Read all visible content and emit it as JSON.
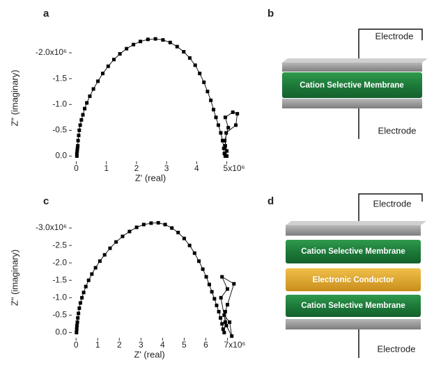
{
  "panel_labels": [
    "a",
    "b",
    "c",
    "d"
  ],
  "chart_data": [
    {
      "type": "line",
      "x_label": "Z' (real)",
      "y_label": "Z\" (imaginary)",
      "color": "#000000",
      "marker": "square",
      "xlim": [
        -0.15,
        5.45
      ],
      "ylim": [
        0.1,
        -2.35
      ],
      "xticks": [
        0,
        1,
        2,
        3,
        4,
        {
          "value": 5,
          "label": "5x10⁶"
        }
      ],
      "yticks": [
        {
          "value": 0,
          "label": "0.0"
        },
        -0.5,
        {
          "value": -1,
          "label": "-1.0"
        },
        -1.5,
        {
          "value": -2,
          "label": "-2.0x10⁶"
        }
      ],
      "x": [
        0.02,
        0.02,
        0.03,
        0.04,
        0.05,
        0.06,
        0.08,
        0.1,
        0.13,
        0.17,
        0.22,
        0.28,
        0.35,
        0.45,
        0.57,
        0.72,
        0.88,
        1.06,
        1.25,
        1.45,
        1.67,
        1.9,
        2.13,
        2.38,
        2.63,
        2.88,
        3.12,
        3.35,
        3.57,
        3.77,
        3.95,
        4.1,
        4.24,
        4.36,
        4.47,
        4.56,
        4.64,
        4.72,
        4.8,
        4.86,
        4.9,
        4.92,
        4.95,
        5.0,
        4.93,
        5.05,
        4.95,
        5.2,
        5.35,
        5.3,
        4.98,
        4.95,
        5.0
      ],
      "values": [
        0.0,
        -0.05,
        -0.1,
        -0.15,
        -0.2,
        -0.3,
        -0.4,
        -0.5,
        -0.6,
        -0.7,
        -0.8,
        -0.92,
        -1.03,
        -1.16,
        -1.3,
        -1.45,
        -1.6,
        -1.74,
        -1.87,
        -1.98,
        -2.08,
        -2.16,
        -2.22,
        -2.26,
        -2.27,
        -2.25,
        -2.2,
        -2.12,
        -2.02,
        -1.9,
        -1.76,
        -1.6,
        -1.43,
        -1.25,
        -1.08,
        -0.9,
        -0.75,
        -0.6,
        -0.45,
        -0.3,
        -0.15,
        -0.05,
        0.0,
        -0.1,
        -0.3,
        -0.55,
        -0.75,
        -0.85,
        -0.82,
        -0.6,
        -0.45,
        -0.2,
        0.0
      ]
    },
    {
      "type": "line",
      "x_label": "Z' (real)",
      "y_label": "Z\" (imaginary)",
      "color": "#000000",
      "marker": "square",
      "xlim": [
        -0.2,
        7.5
      ],
      "ylim": [
        0.15,
        -3.3
      ],
      "xticks": [
        0,
        1,
        2,
        3,
        4,
        5,
        6,
        {
          "value": 7,
          "label": "7x10⁶"
        }
      ],
      "yticks": [
        {
          "value": 0,
          "label": "0.0"
        },
        -0.5,
        {
          "value": -1,
          "label": "-1.0"
        },
        -1.5,
        {
          "value": -2,
          "label": "-2.0"
        },
        -2.5,
        {
          "value": -3,
          "label": "-3.0x10⁶"
        }
      ],
      "x": [
        0.02,
        0.03,
        0.04,
        0.06,
        0.08,
        0.11,
        0.15,
        0.2,
        0.27,
        0.35,
        0.45,
        0.58,
        0.73,
        0.9,
        1.1,
        1.32,
        1.57,
        1.85,
        2.15,
        2.47,
        2.8,
        3.13,
        3.47,
        3.8,
        4.12,
        4.43,
        4.72,
        5.0,
        5.25,
        5.48,
        5.68,
        5.86,
        6.02,
        6.16,
        6.28,
        6.4,
        6.5,
        6.6,
        6.68,
        6.75,
        6.8,
        6.85,
        6.9,
        6.7,
        7.0,
        6.75,
        7.3,
        7.0,
        6.85,
        7.1,
        7.2,
        6.95,
        6.9
      ],
      "values": [
        0.0,
        -0.1,
        -0.2,
        -0.3,
        -0.42,
        -0.55,
        -0.7,
        -0.85,
        -1.0,
        -1.15,
        -1.32,
        -1.5,
        -1.68,
        -1.86,
        -2.05,
        -2.23,
        -2.42,
        -2.6,
        -2.76,
        -2.9,
        -3.02,
        -3.1,
        -3.14,
        -3.15,
        -3.1,
        -3.0,
        -2.87,
        -2.7,
        -2.5,
        -2.28,
        -2.05,
        -1.82,
        -1.6,
        -1.38,
        -1.17,
        -0.97,
        -0.78,
        -0.6,
        -0.42,
        -0.25,
        -0.1,
        0.0,
        -0.3,
        -1.0,
        -1.25,
        -1.6,
        -1.4,
        -0.8,
        -0.5,
        -0.3,
        0.1,
        -0.2,
        -0.6
      ]
    }
  ],
  "diagrams": [
    {
      "top_label": "Electrode",
      "layers": [
        "Cation Selective Membrane"
      ],
      "bottom_label": "Electrode"
    },
    {
      "top_label": "Electrode",
      "layers": [
        "Cation Selective Membrane",
        "Electronic Conductor",
        "Cation Selective Membrane"
      ],
      "bottom_label": "Electrode"
    }
  ]
}
